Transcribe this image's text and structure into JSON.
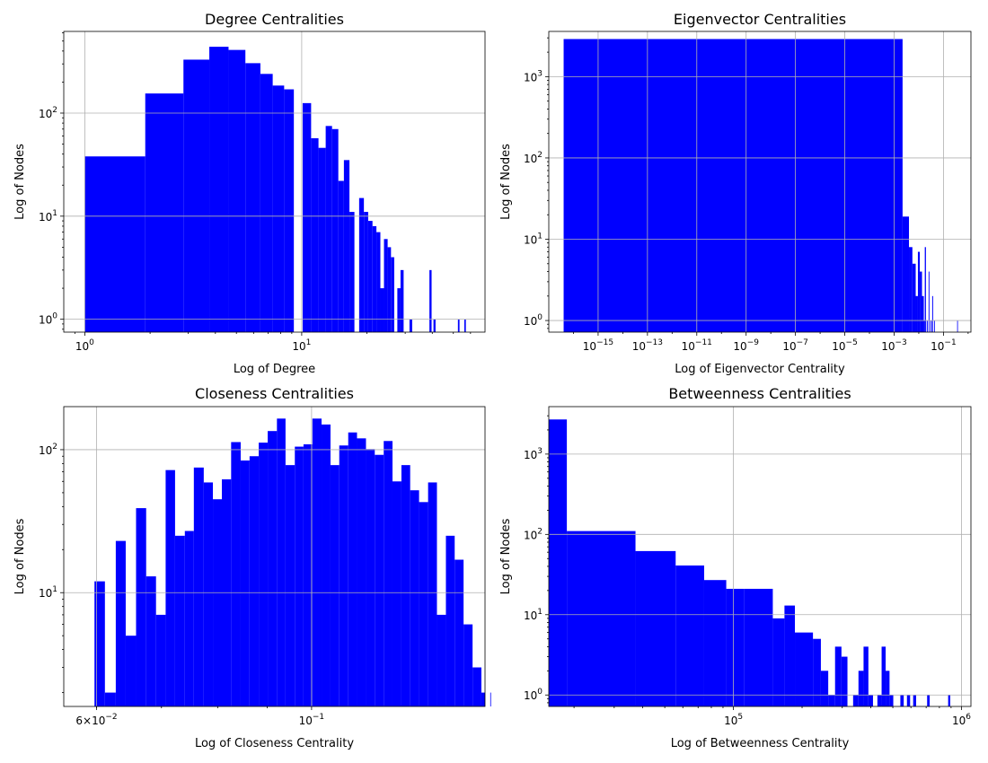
{
  "chart_data": [
    {
      "type": "histogram",
      "title": "Degree Centralities",
      "xlabel": "Log of Degree",
      "ylabel": "Log of Nodes",
      "xscale": "log",
      "yscale": "log",
      "xlim": [
        0.8,
        70
      ],
      "ylim": [
        0.75,
        620
      ],
      "grid": true,
      "color": "#0000ff",
      "xticks": [
        {
          "v": 1,
          "label": "10^0"
        },
        {
          "v": 10,
          "label": "10^1"
        }
      ],
      "yticks": [
        {
          "v": 1,
          "label": "10^0"
        },
        {
          "v": 10,
          "label": "10^1"
        },
        {
          "v": 100,
          "label": "10^2"
        }
      ],
      "bins": [
        {
          "x0": 1,
          "x1": 1.9,
          "count": 38
        },
        {
          "x0": 1.9,
          "x1": 2.85,
          "count": 155
        },
        {
          "x0": 2.85,
          "x1": 3.75,
          "count": 330
        },
        {
          "x0": 3.75,
          "x1": 4.6,
          "count": 440
        },
        {
          "x0": 4.6,
          "x1": 5.5,
          "count": 410
        },
        {
          "x0": 5.5,
          "x1": 6.45,
          "count": 305
        },
        {
          "x0": 6.45,
          "x1": 7.35,
          "count": 240
        },
        {
          "x0": 7.35,
          "x1": 8.3,
          "count": 185
        },
        {
          "x0": 8.3,
          "x1": 9.2,
          "count": 170
        },
        {
          "x0": 10.1,
          "x1": 11.05,
          "count": 125
        },
        {
          "x0": 11.05,
          "x1": 11.95,
          "count": 57
        },
        {
          "x0": 11.95,
          "x1": 12.9,
          "count": 46
        },
        {
          "x0": 12.9,
          "x1": 13.8,
          "count": 75
        },
        {
          "x0": 13.8,
          "x1": 14.75,
          "count": 70
        },
        {
          "x0": 14.75,
          "x1": 15.65,
          "count": 22
        },
        {
          "x0": 15.65,
          "x1": 16.6,
          "count": 35
        },
        {
          "x0": 16.6,
          "x1": 17.5,
          "count": 11
        },
        {
          "x0": 18.4,
          "x1": 19.35,
          "count": 15
        },
        {
          "x0": 19.35,
          "x1": 20.25,
          "count": 11
        },
        {
          "x0": 20.25,
          "x1": 21.2,
          "count": 9
        },
        {
          "x0": 21.2,
          "x1": 22.1,
          "count": 8
        },
        {
          "x0": 22.1,
          "x1": 23.05,
          "count": 7
        },
        {
          "x0": 23.05,
          "x1": 23.95,
          "count": 2
        },
        {
          "x0": 23.95,
          "x1": 24.9,
          "count": 6
        },
        {
          "x0": 24.9,
          "x1": 25.8,
          "count": 5
        },
        {
          "x0": 25.8,
          "x1": 26.7,
          "count": 4
        },
        {
          "x0": 27.6,
          "x1": 28.55,
          "count": 2
        },
        {
          "x0": 28.55,
          "x1": 29.5,
          "count": 3
        },
        {
          "x0": 31.4,
          "x1": 32.3,
          "count": 1
        },
        {
          "x0": 38.8,
          "x1": 39.7,
          "count": 3
        },
        {
          "x0": 40.5,
          "x1": 41.4,
          "count": 1
        },
        {
          "x0": 52.5,
          "x1": 53.4,
          "count": 1
        },
        {
          "x0": 56.2,
          "x1": 57.1,
          "count": 1
        }
      ]
    },
    {
      "type": "histogram",
      "title": "Eigenvector Centralities",
      "xlabel": "Log of Eigenvector Centrality",
      "ylabel": "Log of Nodes",
      "xscale": "log",
      "yscale": "log",
      "xlim": [
        1e-17,
        1.3
      ],
      "ylim": [
        0.72,
        3600
      ],
      "grid": true,
      "color": "#0000ff",
      "xticks": [
        {
          "v": 1e-15,
          "label": "10^−15"
        },
        {
          "v": 1e-13,
          "label": "10^−13"
        },
        {
          "v": 1e-11,
          "label": "10^−11"
        },
        {
          "v": 1e-09,
          "label": "10^−9"
        },
        {
          "v": 1e-07,
          "label": "10^−7"
        },
        {
          "v": 1e-05,
          "label": "10^−5"
        },
        {
          "v": 0.001,
          "label": "10^−3"
        },
        {
          "v": 0.1,
          "label": "10^−1"
        }
      ],
      "yticks": [
        {
          "v": 1,
          "label": "10^0"
        },
        {
          "v": 10,
          "label": "10^1"
        },
        {
          "v": 100,
          "label": "10^2"
        },
        {
          "v": 1000,
          "label": "10^3"
        }
      ],
      "bins": [
        {
          "x0": 4e-17,
          "x1": 0.0022,
          "count": 2900
        },
        {
          "x0": 0.0022,
          "x1": 0.004,
          "count": 19
        },
        {
          "x0": 0.004,
          "x1": 0.0055,
          "count": 8
        },
        {
          "x0": 0.0055,
          "x1": 0.0075,
          "count": 5
        },
        {
          "x0": 0.0075,
          "x1": 0.0092,
          "count": 2
        },
        {
          "x0": 0.0092,
          "x1": 0.011,
          "count": 7
        },
        {
          "x0": 0.011,
          "x1": 0.0135,
          "count": 4
        },
        {
          "x0": 0.0135,
          "x1": 0.016,
          "count": 2
        },
        {
          "x0": 0.016,
          "x1": 0.0175,
          "count": 1
        },
        {
          "x0": 0.0175,
          "x1": 0.0195,
          "count": 8
        },
        {
          "x0": 0.021,
          "x1": 0.023,
          "count": 1
        },
        {
          "x0": 0.025,
          "x1": 0.027,
          "count": 4
        },
        {
          "x0": 0.03,
          "x1": 0.033,
          "count": 1
        },
        {
          "x0": 0.035,
          "x1": 0.038,
          "count": 2
        },
        {
          "x0": 0.042,
          "x1": 0.045,
          "count": 1
        },
        {
          "x0": 0.36,
          "x1": 0.38,
          "count": 1
        }
      ]
    },
    {
      "type": "histogram",
      "title": "Closeness Centralities",
      "xlabel": "Log of Closeness Centrality",
      "ylabel": "Log of Nodes",
      "xscale": "log",
      "yscale": "log",
      "xlim": [
        0.0555,
        0.151
      ],
      "ylim": [
        1.6,
        200
      ],
      "grid": true,
      "color": "#0000ff",
      "xticks": [
        {
          "v": 0.06,
          "label": "6×10^−2"
        },
        {
          "v": 0.1,
          "label": "10^−1"
        }
      ],
      "yticks": [
        {
          "v": 10,
          "label": "10^1"
        },
        {
          "v": 100,
          "label": "10^2"
        }
      ],
      "bins": [
        {
          "x0": 0.0597,
          "x1": 0.0612,
          "count": 12
        },
        {
          "x0": 0.0612,
          "x1": 0.0628,
          "count": 2
        },
        {
          "x0": 0.0628,
          "x1": 0.0643,
          "count": 23
        },
        {
          "x0": 0.0643,
          "x1": 0.0659,
          "count": 5
        },
        {
          "x0": 0.0659,
          "x1": 0.0675,
          "count": 39
        },
        {
          "x0": 0.0675,
          "x1": 0.0691,
          "count": 13
        },
        {
          "x0": 0.0691,
          "x1": 0.0707,
          "count": 7
        },
        {
          "x0": 0.0707,
          "x1": 0.0723,
          "count": 72
        },
        {
          "x0": 0.0723,
          "x1": 0.074,
          "count": 25
        },
        {
          "x0": 0.074,
          "x1": 0.0756,
          "count": 27
        },
        {
          "x0": 0.0756,
          "x1": 0.0774,
          "count": 75
        },
        {
          "x0": 0.0774,
          "x1": 0.0791,
          "count": 59
        },
        {
          "x0": 0.0791,
          "x1": 0.0808,
          "count": 45
        },
        {
          "x0": 0.0808,
          "x1": 0.0826,
          "count": 62
        },
        {
          "x0": 0.0826,
          "x1": 0.0845,
          "count": 113
        },
        {
          "x0": 0.0845,
          "x1": 0.0863,
          "count": 84
        },
        {
          "x0": 0.0863,
          "x1": 0.0882,
          "count": 90
        },
        {
          "x0": 0.0882,
          "x1": 0.0901,
          "count": 112
        },
        {
          "x0": 0.0901,
          "x1": 0.0921,
          "count": 135
        },
        {
          "x0": 0.0921,
          "x1": 0.094,
          "count": 165
        },
        {
          "x0": 0.094,
          "x1": 0.0961,
          "count": 78
        },
        {
          "x0": 0.0961,
          "x1": 0.0981,
          "count": 105
        },
        {
          "x0": 0.0981,
          "x1": 0.1002,
          "count": 109
        },
        {
          "x0": 0.1002,
          "x1": 0.1024,
          "count": 165
        },
        {
          "x0": 0.1024,
          "x1": 0.1046,
          "count": 150
        },
        {
          "x0": 0.1046,
          "x1": 0.1068,
          "count": 78
        },
        {
          "x0": 0.1068,
          "x1": 0.1091,
          "count": 107
        },
        {
          "x0": 0.1091,
          "x1": 0.1114,
          "count": 132
        },
        {
          "x0": 0.1114,
          "x1": 0.1138,
          "count": 120
        },
        {
          "x0": 0.1138,
          "x1": 0.1162,
          "count": 101
        },
        {
          "x0": 0.1162,
          "x1": 0.1187,
          "count": 92
        },
        {
          "x0": 0.1187,
          "x1": 0.1212,
          "count": 115
        },
        {
          "x0": 0.1212,
          "x1": 0.1238,
          "count": 60
        },
        {
          "x0": 0.1238,
          "x1": 0.1264,
          "count": 78
        },
        {
          "x0": 0.1264,
          "x1": 0.1291,
          "count": 52
        },
        {
          "x0": 0.1291,
          "x1": 0.1319,
          "count": 43
        },
        {
          "x0": 0.1319,
          "x1": 0.1347,
          "count": 59
        },
        {
          "x0": 0.1347,
          "x1": 0.1376,
          "count": 7
        },
        {
          "x0": 0.1376,
          "x1": 0.1405,
          "count": 25
        },
        {
          "x0": 0.1405,
          "x1": 0.1435,
          "count": 17
        },
        {
          "x0": 0.1435,
          "x1": 0.1466,
          "count": 6
        },
        {
          "x0": 0.1466,
          "x1": 0.1497,
          "count": 3
        },
        {
          "x0": 0.1497,
          "x1": 0.1529,
          "count": 2
        },
        {
          "x0": 0.1529,
          "x1": 0.1562,
          "count": 2
        }
      ]
    },
    {
      "type": "histogram",
      "title": "Betweenness Centralities",
      "xlabel": "Log of Betweenness Centrality",
      "ylabel": "Log of Nodes",
      "xscale": "log",
      "yscale": "log",
      "xlim": [
        15500,
        1100000
      ],
      "ylim": [
        0.72,
        3900
      ],
      "grid": true,
      "color": "#0000ff",
      "xticks": [
        {
          "v": 100000,
          "label": "10^5"
        },
        {
          "v": 1000000,
          "label": "10^6"
        }
      ],
      "yticks": [
        {
          "v": 1,
          "label": "10^0"
        },
        {
          "v": 10,
          "label": "10^1"
        },
        {
          "v": 100,
          "label": "10^2"
        },
        {
          "v": 1000,
          "label": "10^3"
        }
      ],
      "bins": [
        {
          "x0": 15500,
          "x1": 18600,
          "count": 2700
        },
        {
          "x0": 18600,
          "x1": 37200,
          "count": 110
        },
        {
          "x0": 37200,
          "x1": 55800,
          "count": 62
        },
        {
          "x0": 55800,
          "x1": 74400,
          "count": 41
        },
        {
          "x0": 74400,
          "x1": 93000,
          "count": 27
        },
        {
          "x0": 93000,
          "x1": 111600,
          "count": 21
        },
        {
          "x0": 111600,
          "x1": 148800,
          "count": 21
        },
        {
          "x0": 148800,
          "x1": 167400,
          "count": 9
        },
        {
          "x0": 167400,
          "x1": 186000,
          "count": 13
        },
        {
          "x0": 186000,
          "x1": 223200,
          "count": 6
        },
        {
          "x0": 223200,
          "x1": 241800,
          "count": 5
        },
        {
          "x0": 241800,
          "x1": 260400,
          "count": 2
        },
        {
          "x0": 260400,
          "x1": 279000,
          "count": 1
        },
        {
          "x0": 279000,
          "x1": 297600,
          "count": 4
        },
        {
          "x0": 297600,
          "x1": 316200,
          "count": 3
        },
        {
          "x0": 334800,
          "x1": 353400,
          "count": 1
        },
        {
          "x0": 353400,
          "x1": 372000,
          "count": 2
        },
        {
          "x0": 372000,
          "x1": 390600,
          "count": 4
        },
        {
          "x0": 390600,
          "x1": 409200,
          "count": 1
        },
        {
          "x0": 427800,
          "x1": 446400,
          "count": 1
        },
        {
          "x0": 446400,
          "x1": 465000,
          "count": 4
        },
        {
          "x0": 465000,
          "x1": 483600,
          "count": 2
        },
        {
          "x0": 483600,
          "x1": 502200,
          "count": 1
        },
        {
          "x0": 539400,
          "x1": 558000,
          "count": 1
        },
        {
          "x0": 576600,
          "x1": 595200,
          "count": 1
        },
        {
          "x0": 613800,
          "x1": 632400,
          "count": 1
        },
        {
          "x0": 706800,
          "x1": 725400,
          "count": 1
        },
        {
          "x0": 874000,
          "x1": 892600,
          "count": 1
        }
      ]
    }
  ]
}
